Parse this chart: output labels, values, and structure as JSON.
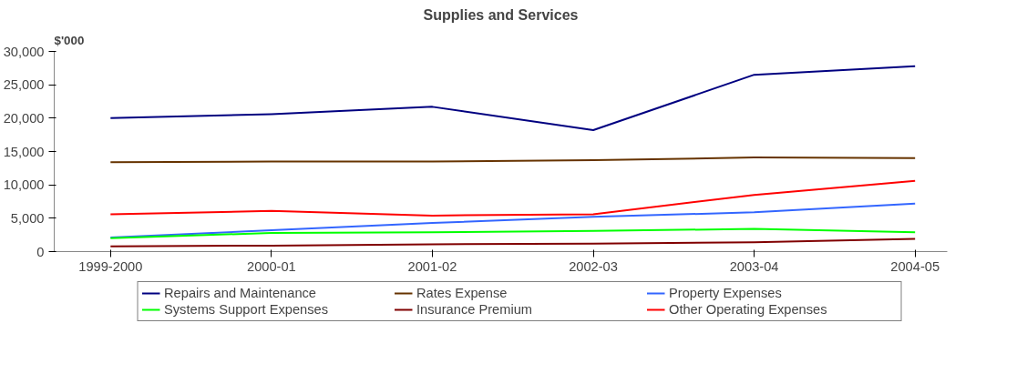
{
  "chart_data": {
    "type": "line",
    "title": "Supplies and Services",
    "ylabel": "$'000",
    "categories": [
      "1999-2000",
      "2000-01",
      "2001-02",
      "2002-03",
      "2003-04",
      "2004-05"
    ],
    "ylim": [
      0,
      30000
    ],
    "yticks": [
      0,
      {
        "value": 5000,
        "label": "5,000"
      },
      {
        "value": 10000,
        "label": "10,000"
      },
      {
        "value": 15000,
        "label": "15,000"
      },
      {
        "value": 20000,
        "label": "20,000"
      },
      {
        "value": 25000,
        "label": "25,000"
      },
      {
        "value": 30000,
        "label": "30,000"
      }
    ],
    "grid": false,
    "legend": "bottom",
    "marker": "none",
    "line_style": "solid",
    "series": [
      {
        "name": "Repairs and Maintenance",
        "color": "#000080",
        "values": [
          20000,
          20600,
          21700,
          18200,
          26500,
          27800
        ]
      },
      {
        "name": "Rates Expense",
        "color": "#663300",
        "values": [
          13400,
          13500,
          13500,
          13700,
          14100,
          14000
        ]
      },
      {
        "name": "Property Expenses",
        "color": "#3366ff",
        "values": [
          2100,
          3200,
          4300,
          5200,
          5900,
          7200
        ]
      },
      {
        "name": "Systems Support Expenses",
        "color": "#00ff00",
        "values": [
          2000,
          2800,
          2900,
          3100,
          3400,
          2900
        ]
      },
      {
        "name": "Insurance Premium",
        "color": "#800000",
        "values": [
          800,
          900,
          1100,
          1200,
          1400,
          1900
        ]
      },
      {
        "name": "Other Operating Expenses",
        "color": "#ff0000",
        "values": [
          5600,
          6100,
          5400,
          5600,
          8500,
          10600
        ]
      }
    ]
  }
}
